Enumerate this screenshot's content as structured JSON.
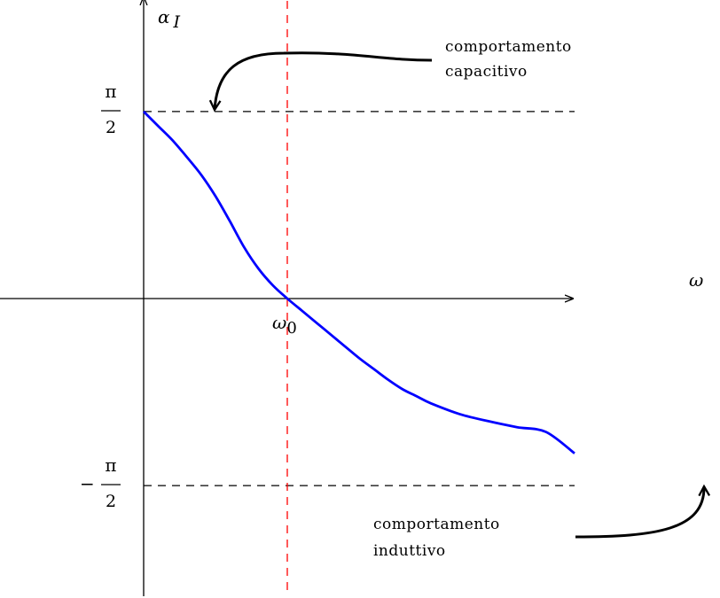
{
  "chart_data": {
    "type": "line",
    "title": "",
    "xlabel": "ω",
    "ylabel": "α_I",
    "ylabel_main": "α",
    "ylabel_sub": "I",
    "x_tick": {
      "main": "ω",
      "sub": "0"
    },
    "y_ticks": [
      {
        "value": 1.5708,
        "numerator": "π",
        "denominator": "2",
        "sign": ""
      },
      {
        "value": -1.5708,
        "numerator": "π",
        "denominator": "2",
        "sign": "−"
      }
    ],
    "xlim": [
      -1.0,
      3.0
    ],
    "ylim": [
      -2.5,
      2.5
    ],
    "omega0": 1.0,
    "grid": false,
    "series": [
      {
        "values": [
          [
            0.0,
            1.5708
          ],
          [
            0.1,
            1.45
          ],
          [
            0.2,
            1.33
          ],
          [
            0.3,
            1.19
          ],
          [
            0.4,
            1.04
          ],
          [
            0.5,
            0.86
          ],
          [
            0.6,
            0.65
          ],
          [
            0.7,
            0.43
          ],
          [
            0.8,
            0.25
          ],
          [
            0.9,
            0.11
          ],
          [
            1.0,
            0.0
          ],
          [
            1.1,
            -0.1
          ],
          [
            1.2,
            -0.2
          ],
          [
            1.3,
            -0.3
          ],
          [
            1.4,
            -0.4
          ],
          [
            1.5,
            -0.5
          ],
          [
            1.6,
            -0.59
          ],
          [
            1.7,
            -0.68
          ],
          [
            1.8,
            -0.76
          ],
          [
            1.9,
            -0.82
          ],
          [
            2.0,
            -0.88
          ],
          [
            2.2,
            -0.97
          ],
          [
            2.4,
            -1.03
          ],
          [
            2.6,
            -1.08
          ],
          [
            2.8,
            -1.12
          ],
          [
            3.0,
            -1.3
          ]
        ]
      }
    ],
    "annotations": [
      {
        "line1": "comportamento",
        "line2": "capacitivo"
      },
      {
        "line1": "comportamento",
        "line2": "induttivo"
      }
    ],
    "colors": {
      "curve": "#0000ff",
      "omega0_line": "#ff0000",
      "axes": "#000000",
      "asymptote": "#000000"
    }
  }
}
